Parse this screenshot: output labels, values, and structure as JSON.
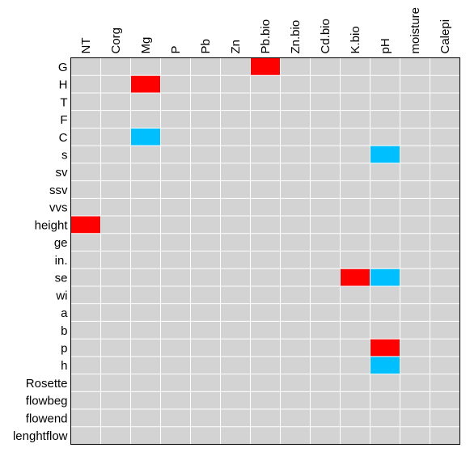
{
  "chart_data": {
    "type": "heatmap",
    "title": "",
    "xlabel": "",
    "ylabel": "",
    "columns": [
      "NT",
      "Corg",
      "Mg",
      "P",
      "Pb",
      "Zn",
      "Pb.bio",
      "Zn.bio",
      "Cd.bio",
      "K.bio",
      "pH",
      "moisture",
      "Calepi"
    ],
    "rows": [
      "G",
      "H",
      "T",
      "F",
      "C",
      "s",
      "sv",
      "ssv",
      "vvs",
      "height",
      "ge",
      "in.",
      "se",
      "wi",
      "a",
      "b",
      "p",
      "h",
      "Rosette",
      "flowbeg",
      "flowend",
      "lenghtflow"
    ],
    "cells": [
      {
        "row": "G",
        "column": "Pb.bio",
        "value": 1
      },
      {
        "row": "H",
        "column": "Mg",
        "value": 1
      },
      {
        "row": "C",
        "column": "Mg",
        "value": -1
      },
      {
        "row": "s",
        "column": "pH",
        "value": -1
      },
      {
        "row": "height",
        "column": "NT",
        "value": 1
      },
      {
        "row": "se",
        "column": "K.bio",
        "value": 1
      },
      {
        "row": "se",
        "column": "pH",
        "value": -1
      },
      {
        "row": "p",
        "column": "pH",
        "value": 1
      },
      {
        "row": "h",
        "column": "pH",
        "value": -1
      }
    ],
    "colors": {
      "positive": "#ff0000",
      "negative": "#00bfff",
      "neutral": "#d3d3d3",
      "grid": "#ffffff"
    },
    "grid": true,
    "legend": "none"
  }
}
